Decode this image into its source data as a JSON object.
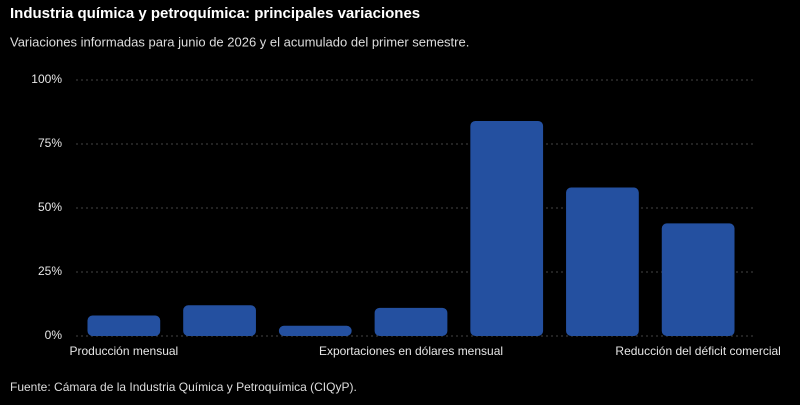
{
  "chart_data": {
    "type": "bar",
    "title": "Industria química y petroquímica: principales variaciones",
    "subtitle": "Variaciones informadas para junio de 2026 y el acumulado del primer semestre.",
    "source": "Fuente: Cámara de la Industria Química y Petroquímica (CIQyP).",
    "categories": [
      "Producción mensual",
      null,
      null,
      "Exportaciones en dólares mensual",
      null,
      null,
      "Reducción del déficit comercial"
    ],
    "values": [
      8,
      12,
      4,
      11,
      84,
      58,
      44
    ],
    "color": "#2450a0",
    "ylim": [
      0,
      100
    ],
    "yticks": [
      {
        "value": 0,
        "label": "0%"
      },
      {
        "value": 25,
        "label": "25%"
      },
      {
        "value": 50,
        "label": "50%"
      },
      {
        "value": 75,
        "label": "75%"
      },
      {
        "value": 100,
        "label": "100%"
      }
    ],
    "grid": true
  }
}
